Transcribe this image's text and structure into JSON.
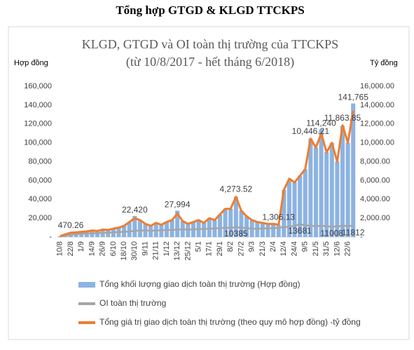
{
  "page_title": "Tổng hợp  GTGD & KLGD TTCKPS",
  "chart_data": {
    "type": "combo",
    "title": "KLGD, GTGD và OI toàn thị trường của TTCKPS",
    "subtitle": "(từ 10/8/2017 - hết tháng 6/2018)",
    "y_label": "Hợp đồng",
    "y2_label": "Tỷ đồng",
    "categories": [
      "10/8",
      null,
      "22/8",
      null,
      "1/9",
      null,
      "14/9",
      null,
      "26/9",
      null,
      "6/10",
      null,
      "18/10",
      null,
      "30/10",
      null,
      "9/11",
      null,
      "21/11",
      null,
      "1/12",
      null,
      "13/12",
      null,
      "25/12",
      null,
      "5/1",
      null,
      "17/1",
      null,
      "29/1",
      null,
      "8/2",
      null,
      "27/2",
      null,
      "9/3",
      null,
      "21/3",
      null,
      "2/4",
      null,
      "12/4",
      null,
      "24/4",
      null,
      "9/5",
      null,
      "21/5",
      null,
      "31/5",
      null,
      "12/6",
      null,
      "22/6",
      null
    ],
    "ylim": [
      0,
      160000
    ],
    "yticks": [
      {
        "value": 0,
        "label": "-"
      },
      {
        "value": 20000,
        "label": "20,000"
      },
      {
        "value": 40000,
        "label": "40,000"
      },
      {
        "value": 60000,
        "label": "60,000"
      },
      {
        "value": 80000,
        "label": "80,000"
      },
      {
        "value": 100000,
        "label": "100,000"
      },
      {
        "value": 120000,
        "label": "120,000"
      },
      {
        "value": 140000,
        "label": "140,000"
      },
      {
        "value": 160000,
        "label": "160,000"
      }
    ],
    "y2lim": [
      0,
      16000
    ],
    "y2ticks": [
      {
        "value": 0,
        "label": "-"
      },
      {
        "value": 2000,
        "label": "2,000.00"
      },
      {
        "value": 4000,
        "label": "4,000.00"
      },
      {
        "value": 6000,
        "label": "6,000.00"
      },
      {
        "value": 8000,
        "label": "8,000.00"
      },
      {
        "value": 10000,
        "label": "10,000.00"
      },
      {
        "value": 12000,
        "label": "12,000.00"
      },
      {
        "value": 14000,
        "label": "14,000.00"
      },
      {
        "value": 16000,
        "label": "16,000.00"
      }
    ],
    "series": [
      {
        "name": "Tổng khối lượng giao dịch toàn thị trường (Hợp đồng)",
        "type": "bar",
        "color": "#8db3e2",
        "values": [
          1000,
          3000,
          4700,
          5000,
          5500,
          6000,
          7000,
          6500,
          8000,
          7500,
          9000,
          10000,
          12000,
          16000,
          22420,
          18000,
          14000,
          12000,
          15000,
          13000,
          16000,
          18000,
          27994,
          17000,
          14000,
          16000,
          18000,
          15000,
          20000,
          18000,
          24000,
          30000,
          30000,
          42735,
          28000,
          22000,
          18000,
          16000,
          15000,
          14000,
          14000,
          13061,
          50000,
          60000,
          58000,
          65000,
          72000,
          104462,
          95000,
          114240,
          90000,
          100000,
          80000,
          118000,
          100000,
          141765
        ],
        "value_labels": [
          null,
          null,
          null,
          null,
          null,
          null,
          null,
          null,
          null,
          null,
          null,
          null,
          null,
          null,
          "22,420",
          null,
          null,
          null,
          null,
          null,
          null,
          null,
          "27,994",
          null,
          null,
          null,
          null,
          null,
          null,
          null,
          null,
          null,
          null,
          null,
          null,
          null,
          null,
          null,
          null,
          null,
          null,
          null,
          null,
          null,
          null,
          null,
          null,
          null,
          null,
          "114,240",
          null,
          null,
          null,
          null,
          null,
          "141,765"
        ]
      },
      {
        "name": "OI toàn thị trường",
        "type": "line",
        "color": "#a5a5a5",
        "values": [
          500,
          1500,
          2500,
          3000,
          3500,
          3800,
          4000,
          4200,
          4500,
          4700,
          5000,
          5200,
          5500,
          6000,
          6500,
          7000,
          7000,
          6800,
          7000,
          7200,
          7500,
          7600,
          8000,
          8200,
          8000,
          8200,
          8500,
          8600,
          9000,
          9200,
          9500,
          9800,
          9800,
          10385,
          10000,
          9500,
          9000,
          8800,
          9000,
          9200,
          9500,
          9800,
          10500,
          11000,
          12000,
          13681,
          12500,
          12000,
          11500,
          12000,
          11500,
          11008,
          11500,
          11800,
          12000,
          11812
        ],
        "value_labels": [
          null,
          null,
          null,
          null,
          null,
          null,
          null,
          null,
          null,
          null,
          null,
          null,
          null,
          null,
          null,
          null,
          null,
          null,
          null,
          null,
          null,
          null,
          null,
          null,
          null,
          null,
          null,
          null,
          null,
          null,
          null,
          null,
          null,
          "10385",
          null,
          null,
          null,
          null,
          null,
          null,
          null,
          null,
          null,
          null,
          null,
          "13681",
          null,
          null,
          null,
          null,
          null,
          "11008",
          null,
          null,
          null,
          "11812"
        ]
      },
      {
        "name": "Tổng giá trị giao dịch toàn thị trường (theo quy mô hợp đồng) -tỷ đồng",
        "type": "line",
        "axis": "y2",
        "color": "#ed7d31",
        "values": [
          100,
          300,
          470.26,
          500,
          550,
          600,
          700,
          650,
          800,
          750,
          900,
          1000,
          1200,
          1600,
          2000,
          1800,
          1400,
          1200,
          1500,
          1300,
          1600,
          1800,
          2500,
          1700,
          1400,
          1600,
          1800,
          1500,
          2000,
          1800,
          2400,
          3000,
          3000,
          4273.52,
          2800,
          2200,
          1800,
          1600,
          1500,
          1400,
          1400,
          1306.13,
          5000,
          6200,
          5800,
          6500,
          7200,
          10446.21,
          9500,
          11000,
          9000,
          10000,
          8000,
          11863.85,
          10000,
          13400
        ],
        "value_labels": [
          null,
          null,
          "470.26",
          null,
          null,
          null,
          null,
          null,
          null,
          null,
          null,
          null,
          null,
          null,
          null,
          null,
          null,
          null,
          null,
          null,
          null,
          null,
          null,
          null,
          null,
          null,
          null,
          null,
          null,
          null,
          null,
          null,
          null,
          "4,273.52",
          null,
          null,
          null,
          null,
          null,
          null,
          null,
          "1,306.13",
          null,
          null,
          null,
          null,
          null,
          "10,446.21",
          null,
          null,
          null,
          null,
          null,
          "11,863.85",
          null,
          null
        ]
      }
    ]
  }
}
